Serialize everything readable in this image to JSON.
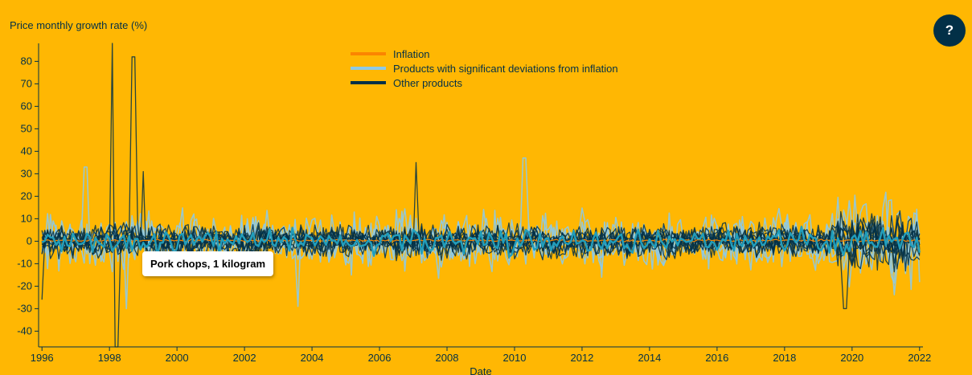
{
  "help_button": {
    "label": "?"
  },
  "tooltip": {
    "text": "Pork chops, 1 kilogram"
  },
  "colors": {
    "background": "#FFB703",
    "inflation": "#FB8500",
    "significant": "#8ECAE6",
    "other": "#023047",
    "highlight": "#219EBC"
  },
  "chart_data": {
    "type": "line",
    "ylabel": "Price monthly growth rate (%)",
    "xlabel": "Date",
    "xlim": [
      1995.9,
      2022.1
    ],
    "ylim": [
      -47,
      88
    ],
    "grid": false,
    "legend_position": "top-center",
    "x_ticks": [
      1996,
      1998,
      2000,
      2002,
      2004,
      2006,
      2008,
      2010,
      2012,
      2014,
      2016,
      2018,
      2020,
      2022
    ],
    "y_ticks": [
      -40,
      -30,
      -20,
      -10,
      0,
      10,
      20,
      30,
      40,
      50,
      60,
      70,
      80
    ],
    "legend": [
      {
        "name": "Inflation",
        "color": "#FB8500"
      },
      {
        "name": "Products with significant deviations from inflation",
        "color": "#8ECAE6"
      },
      {
        "name": "Other products",
        "color": "#023047"
      }
    ],
    "highlighted_series": "Pork chops, 1 kilogram",
    "spikes": [
      {
        "series": "other",
        "x": 1996.0,
        "y": -26
      },
      {
        "series": "other",
        "x": 1998.1,
        "y": 88
      },
      {
        "series": "other",
        "x": 1998.2,
        "y": -47
      },
      {
        "series": "other",
        "x": 1998.7,
        "y": 82
      },
      {
        "series": "other",
        "x": 1999.0,
        "y": 31
      },
      {
        "series": "other",
        "x": 2007.1,
        "y": 35
      },
      {
        "series": "other",
        "x": 2019.8,
        "y": -30
      },
      {
        "series": "significant",
        "x": 1997.3,
        "y": 33
      },
      {
        "series": "significant",
        "x": 1998.5,
        "y": -30
      },
      {
        "series": "significant",
        "x": 2003.6,
        "y": -29
      },
      {
        "series": "significant",
        "x": 2010.3,
        "y": 37
      }
    ]
  }
}
